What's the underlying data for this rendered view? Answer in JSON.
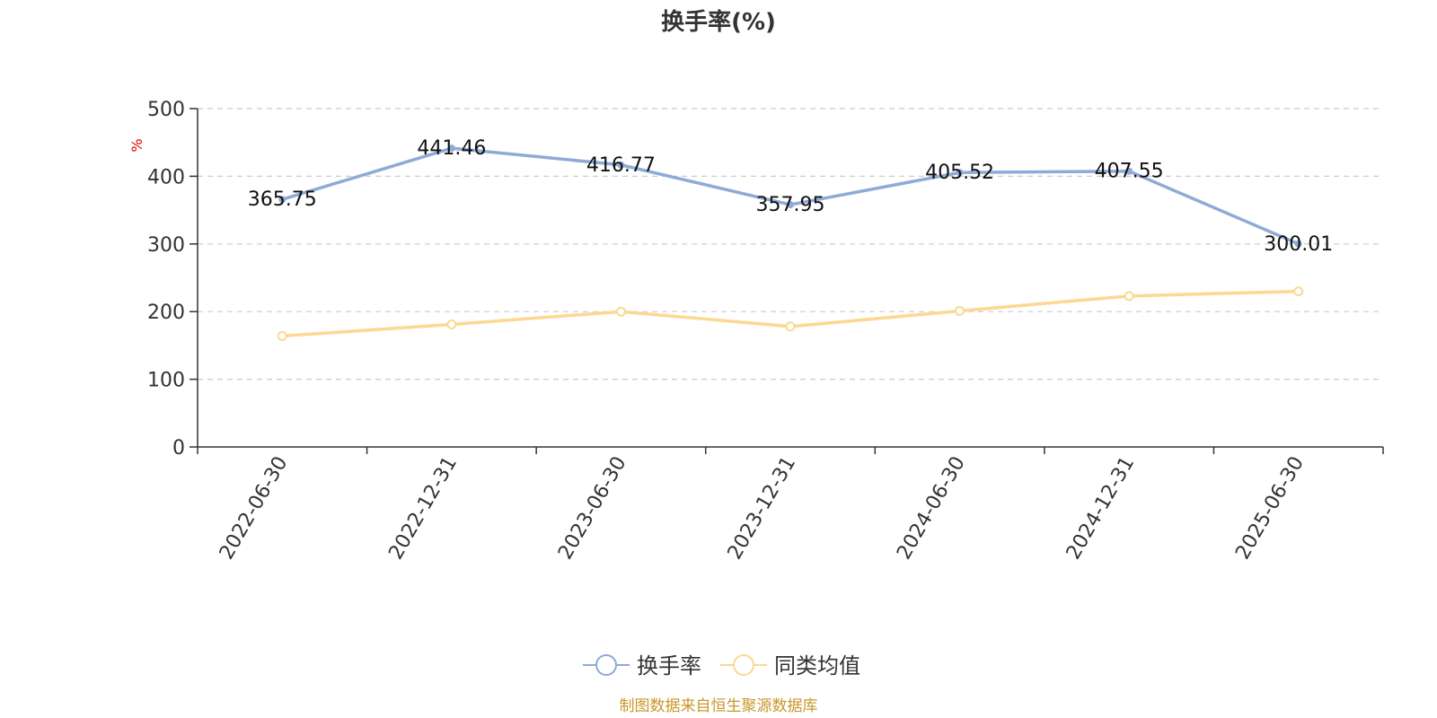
{
  "chart_data": {
    "type": "line",
    "title": "换手率(%)",
    "ylabel": "%",
    "xlabel": "",
    "ylim": [
      0,
      500
    ],
    "yticks": [
      0,
      100,
      200,
      300,
      400,
      500
    ],
    "grid": true,
    "legend_position": "bottom",
    "categories": [
      "2022-06-30",
      "2022-12-31",
      "2023-06-30",
      "2023-12-31",
      "2024-06-30",
      "2024-12-31",
      "2025-06-30"
    ],
    "series": [
      {
        "name": "换手率",
        "color": "#8eaad6",
        "values": [
          365.75,
          441.46,
          416.77,
          357.95,
          405.52,
          407.55,
          300.01
        ],
        "labels": [
          "365.75",
          "441.46",
          "416.77",
          "357.95",
          "405.52",
          "407.55",
          "300.01"
        ]
      },
      {
        "name": "同类均值",
        "color": "#fbd893",
        "values": [
          164,
          181,
          200,
          178,
          201,
          223,
          230
        ]
      }
    ]
  },
  "source_text": "制图数据来自恒生聚源数据库",
  "source_color": "#c8962a"
}
